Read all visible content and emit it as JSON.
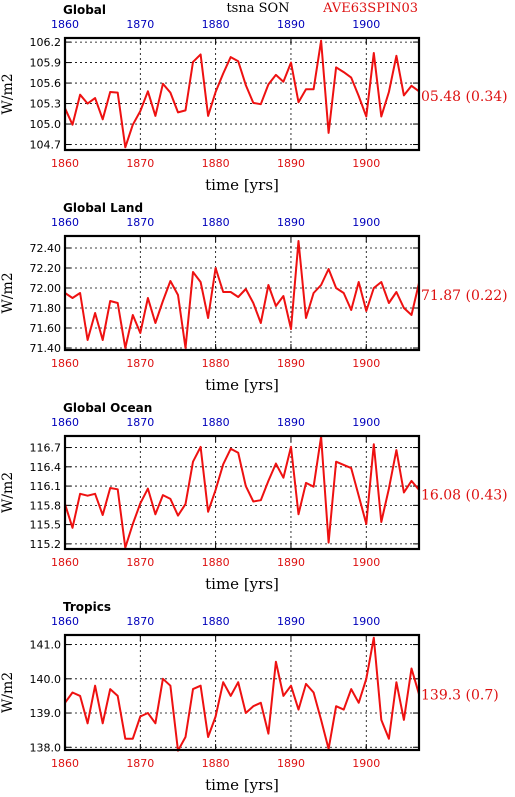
{
  "header": {
    "left": "Global",
    "center": "tsna SON",
    "right": "AVE63SPIN03"
  },
  "colors": {
    "line": "#ee1111",
    "red_text": "#dd1111",
    "blue_text": "#0000bb",
    "frame": "#000000",
    "grid": "#000000"
  },
  "chart_data": [
    {
      "type": "line",
      "title": "Global",
      "ylabel": "W/m2",
      "xlabel": "time [yrs]",
      "xlim": [
        1860,
        1907
      ],
      "ylim": [
        104.62,
        106.26
      ],
      "yticks": [
        104.7,
        105.0,
        105.3,
        105.6,
        105.9,
        106.2
      ],
      "ytick_labels": [
        "104.7",
        "105.0",
        "105.3",
        "105.6",
        "105.9",
        "106.2"
      ],
      "xticks": [
        1860,
        1870,
        1880,
        1890,
        1900
      ],
      "xtick_labels": [
        "1860",
        "1870",
        "1880",
        "1890",
        "1900"
      ],
      "stat": "05.48 (0.34)",
      "grid": true,
      "x": [
        1860,
        1861,
        1862,
        1863,
        1864,
        1865,
        1866,
        1867,
        1868,
        1869,
        1870,
        1871,
        1872,
        1873,
        1874,
        1875,
        1876,
        1877,
        1878,
        1879,
        1880,
        1881,
        1882,
        1883,
        1884,
        1885,
        1886,
        1887,
        1888,
        1889,
        1890,
        1891,
        1892,
        1893,
        1894,
        1895,
        1896,
        1897,
        1898,
        1899,
        1900,
        1901,
        1902,
        1903,
        1904,
        1905,
        1906,
        1907
      ],
      "values": [
        105.23,
        104.99,
        105.43,
        105.3,
        105.38,
        105.07,
        105.47,
        105.46,
        104.66,
        104.99,
        105.19,
        105.48,
        105.12,
        105.59,
        105.46,
        105.17,
        105.2,
        105.91,
        106.02,
        105.12,
        105.47,
        105.74,
        105.98,
        105.92,
        105.57,
        105.31,
        105.29,
        105.58,
        105.72,
        105.62,
        105.9,
        105.32,
        105.51,
        105.51,
        106.22,
        104.87,
        105.83,
        105.76,
        105.68,
        105.41,
        105.11,
        106.04,
        105.11,
        105.47,
        106.0,
        105.42,
        105.56,
        105.48
      ]
    },
    {
      "type": "line",
      "title": "Global Land",
      "ylabel": "W/m2",
      "xlabel": "time [yrs]",
      "xlim": [
        1860,
        1907
      ],
      "ylim": [
        71.38,
        72.52
      ],
      "yticks": [
        71.4,
        71.6,
        71.8,
        72.0,
        72.2,
        72.4
      ],
      "ytick_labels": [
        "71.40",
        "71.60",
        "71.80",
        "72.00",
        "72.20",
        "72.40"
      ],
      "xticks": [
        1860,
        1870,
        1880,
        1890,
        1900
      ],
      "xtick_labels": [
        "1860",
        "1870",
        "1880",
        "1890",
        "1900"
      ],
      "stat": "71.87 (0.22)",
      "grid": true,
      "x": [
        1860,
        1861,
        1862,
        1863,
        1864,
        1865,
        1866,
        1867,
        1868,
        1869,
        1870,
        1871,
        1872,
        1873,
        1874,
        1875,
        1876,
        1877,
        1878,
        1879,
        1880,
        1881,
        1882,
        1883,
        1884,
        1885,
        1886,
        1887,
        1888,
        1889,
        1890,
        1891,
        1892,
        1893,
        1894,
        1895,
        1896,
        1897,
        1898,
        1899,
        1900,
        1901,
        1902,
        1903,
        1904,
        1905,
        1906,
        1907
      ],
      "values": [
        71.95,
        71.9,
        71.95,
        71.48,
        71.75,
        71.48,
        71.87,
        71.85,
        71.4,
        71.73,
        71.55,
        71.9,
        71.65,
        71.87,
        72.07,
        71.93,
        71.4,
        72.16,
        72.06,
        71.7,
        72.2,
        71.96,
        71.96,
        71.91,
        71.99,
        71.85,
        71.65,
        72.03,
        71.82,
        71.92,
        71.59,
        72.47,
        71.7,
        71.95,
        72.03,
        72.19,
        72.0,
        71.95,
        71.78,
        72.06,
        71.77,
        72.0,
        72.06,
        71.85,
        71.96,
        71.8,
        71.73,
        72.05
      ]
    },
    {
      "type": "line",
      "title": "Global Ocean",
      "ylabel": "W/m2",
      "xlabel": "time [yrs]",
      "xlim": [
        1860,
        1907
      ],
      "ylim": [
        115.12,
        116.88
      ],
      "yticks": [
        115.2,
        115.5,
        115.8,
        116.1,
        116.4,
        116.7
      ],
      "ytick_labels": [
        "115.2",
        "115.5",
        "115.8",
        "116.1",
        "116.4",
        "116.7"
      ],
      "xticks": [
        1860,
        1870,
        1880,
        1890,
        1900
      ],
      "xtick_labels": [
        "1860",
        "1870",
        "1880",
        "1890",
        "1900"
      ],
      "stat": "16.08 (0.43)",
      "grid": true,
      "x": [
        1860,
        1861,
        1862,
        1863,
        1864,
        1865,
        1866,
        1867,
        1868,
        1869,
        1870,
        1871,
        1872,
        1873,
        1874,
        1875,
        1876,
        1877,
        1878,
        1879,
        1880,
        1881,
        1882,
        1883,
        1884,
        1885,
        1886,
        1887,
        1888,
        1889,
        1890,
        1891,
        1892,
        1893,
        1894,
        1895,
        1896,
        1897,
        1898,
        1899,
        1900,
        1901,
        1902,
        1903,
        1904,
        1905,
        1906,
        1907
      ],
      "values": [
        115.82,
        115.45,
        115.98,
        115.95,
        115.98,
        115.65,
        116.07,
        116.05,
        115.14,
        115.51,
        115.83,
        116.06,
        115.66,
        115.96,
        115.9,
        115.64,
        115.82,
        116.48,
        116.71,
        115.7,
        116.04,
        116.44,
        116.68,
        116.62,
        116.1,
        115.86,
        115.88,
        116.18,
        116.45,
        116.23,
        116.71,
        115.66,
        116.15,
        116.09,
        116.87,
        115.22,
        116.48,
        116.43,
        116.38,
        115.95,
        115.51,
        116.75,
        115.54,
        116.06,
        116.66,
        116.0,
        116.18,
        116.04
      ]
    },
    {
      "type": "line",
      "title": "Tropics",
      "ylabel": "W/m2",
      "xlabel": "time [yrs]",
      "xlim": [
        1860,
        1907
      ],
      "ylim": [
        137.92,
        141.28
      ],
      "yticks": [
        138.0,
        139.0,
        140.0,
        141.0
      ],
      "ytick_labels": [
        "138.0",
        "139.0",
        "140.0",
        "141.0"
      ],
      "xticks": [
        1860,
        1870,
        1880,
        1890,
        1900
      ],
      "xtick_labels": [
        "1860",
        "1870",
        "1880",
        "1890",
        "1900"
      ],
      "stat": "139.3 (0.7)",
      "grid": true,
      "x": [
        1860,
        1861,
        1862,
        1863,
        1864,
        1865,
        1866,
        1867,
        1868,
        1869,
        1870,
        1871,
        1872,
        1873,
        1874,
        1875,
        1876,
        1877,
        1878,
        1879,
        1880,
        1881,
        1882,
        1883,
        1884,
        1885,
        1886,
        1887,
        1888,
        1889,
        1890,
        1891,
        1892,
        1893,
        1894,
        1895,
        1896,
        1897,
        1898,
        1899,
        1900,
        1901,
        1902,
        1903,
        1904,
        1905,
        1906,
        1907
      ],
      "values": [
        139.3,
        139.6,
        139.5,
        138.7,
        139.8,
        138.7,
        139.7,
        139.5,
        138.25,
        138.25,
        138.9,
        139.0,
        138.7,
        140.0,
        139.8,
        137.9,
        138.3,
        139.7,
        139.8,
        138.3,
        138.9,
        139.9,
        139.5,
        139.9,
        139.0,
        139.2,
        139.3,
        138.4,
        140.5,
        139.5,
        139.8,
        139.1,
        139.85,
        139.6,
        138.8,
        137.95,
        139.2,
        139.1,
        139.7,
        139.3,
        140.0,
        141.2,
        138.8,
        138.25,
        139.9,
        138.8,
        140.3,
        139.55
      ]
    }
  ],
  "top_axis_labels": [
    {
      "label": "1860",
      "year": 1860,
      "color": "blue"
    },
    {
      "label": "1870",
      "year": 1870,
      "color": "blue"
    },
    {
      "label": "1880",
      "year": 1880,
      "color": "blue"
    },
    {
      "label": "1890",
      "year": 1890,
      "color": "blue"
    },
    {
      "label": "1900",
      "year": 1900,
      "color": "blue"
    }
  ]
}
